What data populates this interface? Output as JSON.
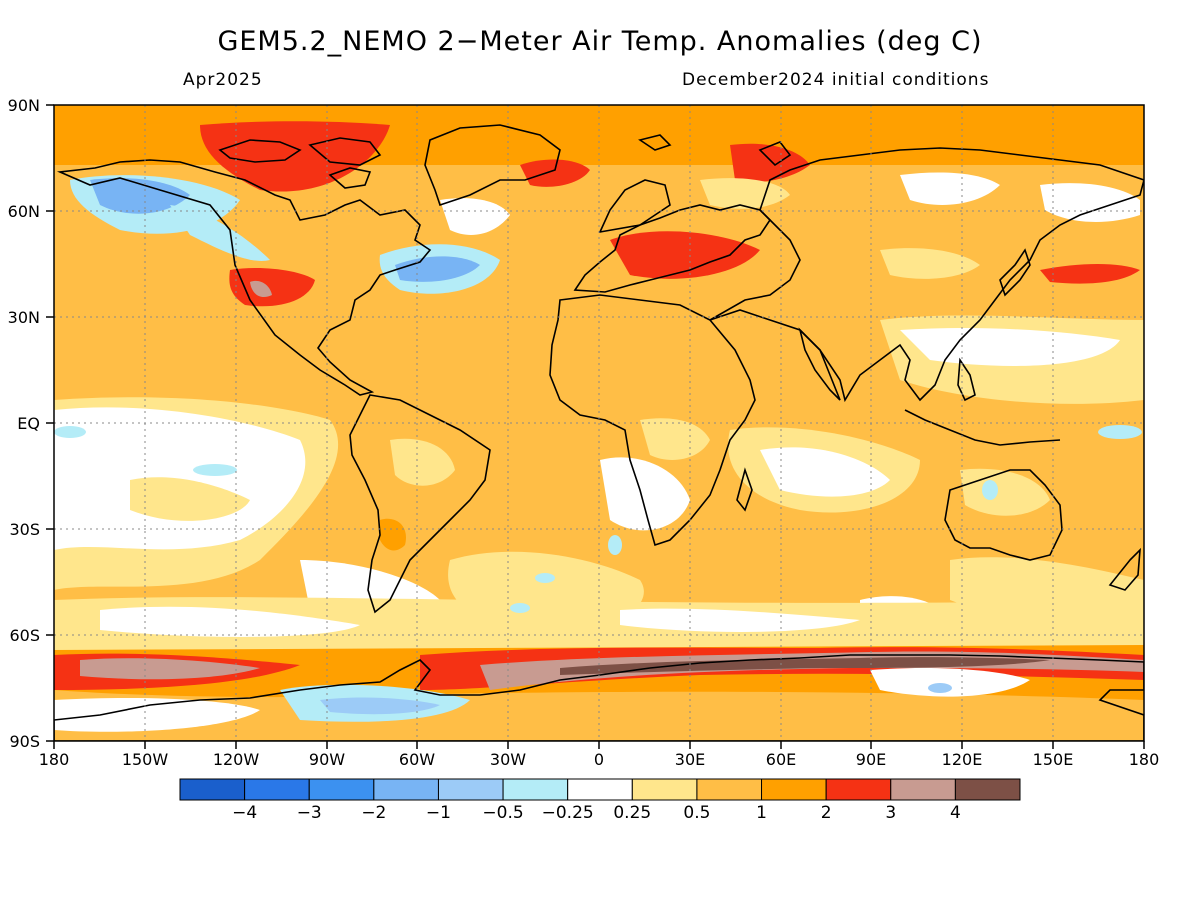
{
  "title": "GEM5.2_NEMO 2−Meter Air Temp. Anomalies (deg C)",
  "subtitle_left": "Apr2025",
  "subtitle_right": "December2024 initial conditions",
  "y_axis_labels": [
    "90N",
    "60N",
    "30N",
    "EQ",
    "30S",
    "60S",
    "90S"
  ],
  "x_axis_labels": [
    "180",
    "150W",
    "120W",
    "90W",
    "60W",
    "30W",
    "0",
    "30E",
    "60E",
    "90E",
    "120E",
    "150E",
    "180"
  ],
  "colorbar": {
    "colors": [
      "#1a5fcc",
      "#2a78e8",
      "#3c91f0",
      "#78b4f4",
      "#9ccbf7",
      "#b4ecf7",
      "#ffffff",
      "#ffe68c",
      "#ffbe46",
      "#ffa000",
      "#f53214",
      "#c89b91",
      "#7d5046"
    ],
    "labels": [
      "−4",
      "−3",
      "−2",
      "−1",
      "−0.5",
      "−0.25",
      "0.25",
      "0.5",
      "1",
      "2",
      "3",
      "4"
    ]
  },
  "colors": {
    "background_anomaly": "#ffbe46",
    "coastline": "#000000"
  }
}
